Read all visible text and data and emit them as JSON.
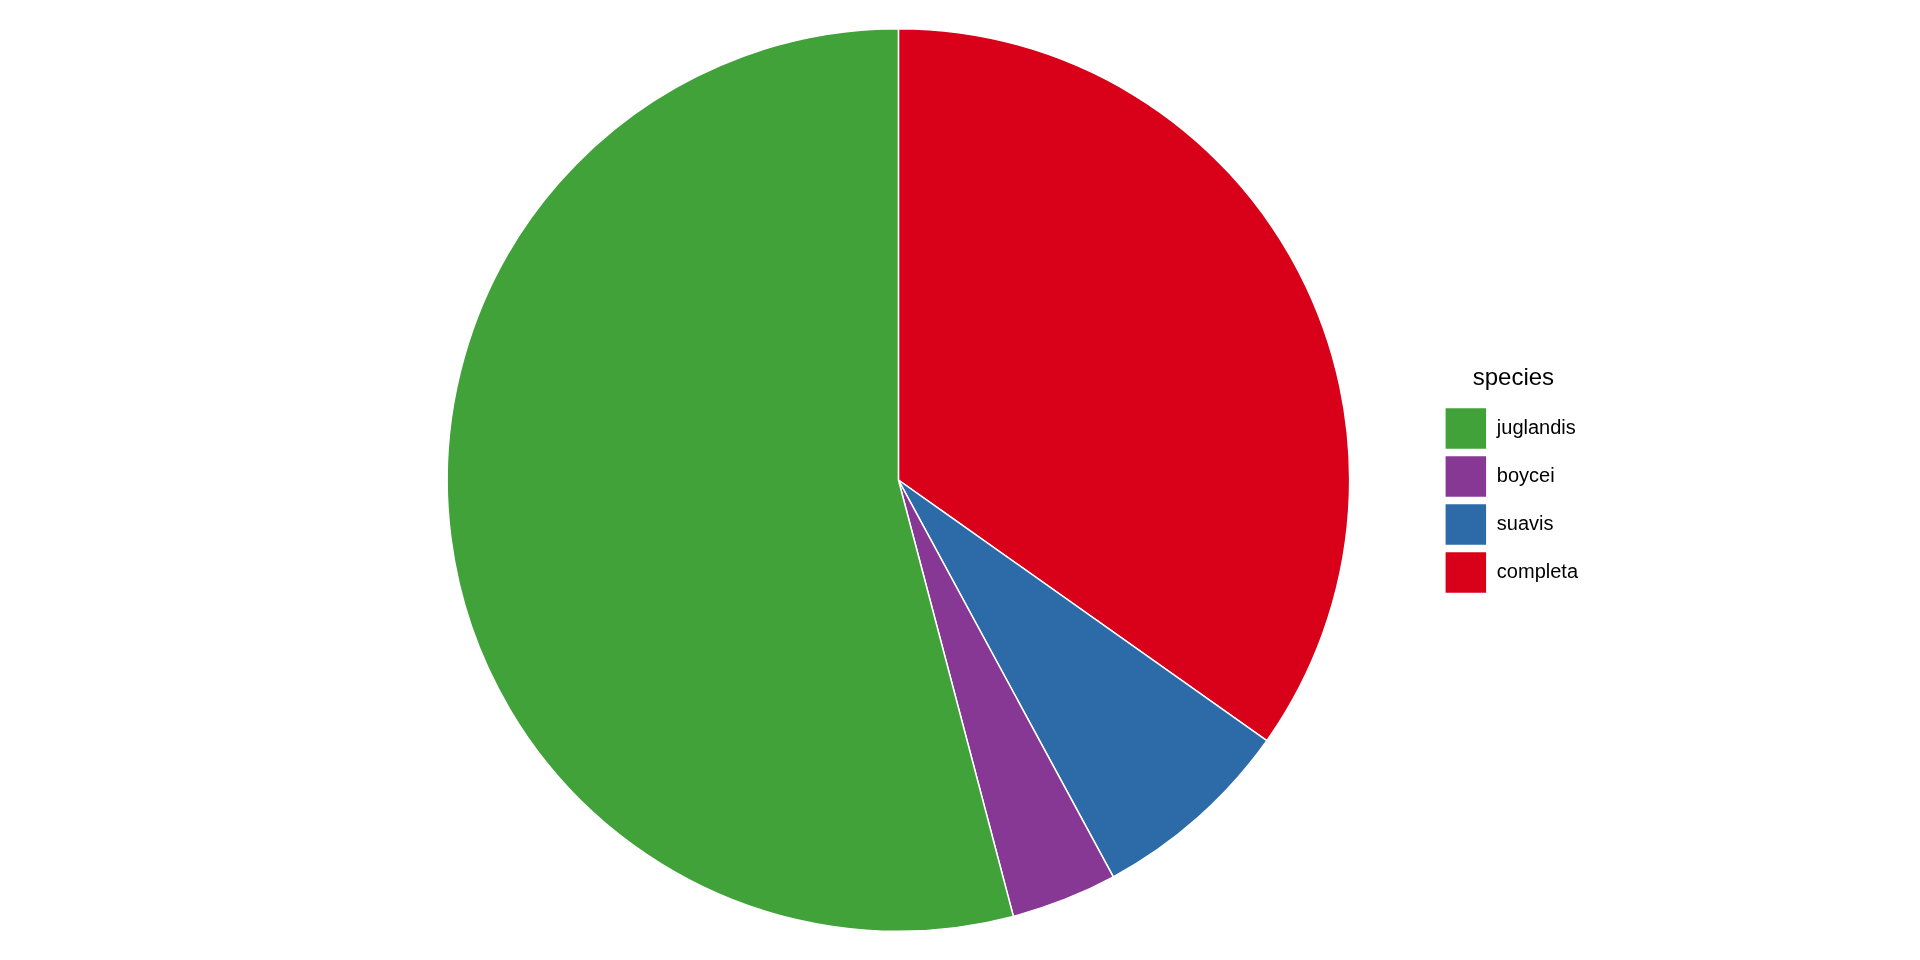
{
  "chart_data": {
    "type": "pie",
    "legend_title": "species",
    "categories": [
      "juglandis",
      "boycei",
      "suavis",
      "completa"
    ],
    "values": [
      54.1,
      3.8,
      7.3,
      34.8
    ],
    "colors": [
      "#41a23a",
      "#873895",
      "#2d6aa8",
      "#d9001a"
    ],
    "legend": "right"
  }
}
